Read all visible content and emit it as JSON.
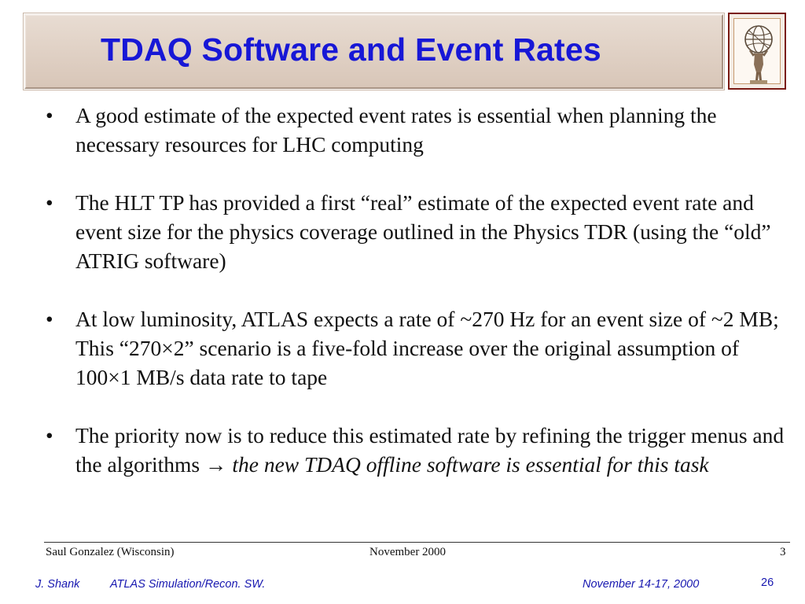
{
  "slide": {
    "title": "TDAQ Software and Event Rates"
  },
  "bullets": [
    {
      "text": "A good estimate of the expected event rates is essential when planning the necessary resources for LHC computing",
      "italic": ""
    },
    {
      "text": "The HLT TP has provided a first “real” estimate of the expected event rate and event size for the physics coverage outlined in the Physics TDR (using the “old” ATRIG software)",
      "italic": ""
    },
    {
      "text": "At low luminosity, ATLAS expects a rate of ~270 Hz for an event size of ~2 MB; This “270×2” scenario is a five-fold increase over the original assumption of 100×1 MB/s data rate to tape",
      "italic": ""
    },
    {
      "text": "The priority now is to reduce this estimated rate by refining the trigger menus and the algorithms → ",
      "italic": "the new TDAQ offline software is essential for this task"
    }
  ],
  "inner_footer": {
    "author": "Saul Gonzalez (Wisconsin)",
    "date": "November 2000",
    "page": "3"
  },
  "footer": {
    "presenter": "J. Shank",
    "talk": "ATLAS Simulation/Recon. SW.",
    "dates": "November  14-17, 2000",
    "slide_number": "26"
  },
  "icons": {
    "logo": "atlas-statue-logo-icon",
    "bullet": "bullet-dot-icon"
  },
  "colors": {
    "title": "#1717d6",
    "title_bar": "#d8c6b8",
    "footer_text": "#1717b0",
    "logo_border": "#7a1a14"
  }
}
